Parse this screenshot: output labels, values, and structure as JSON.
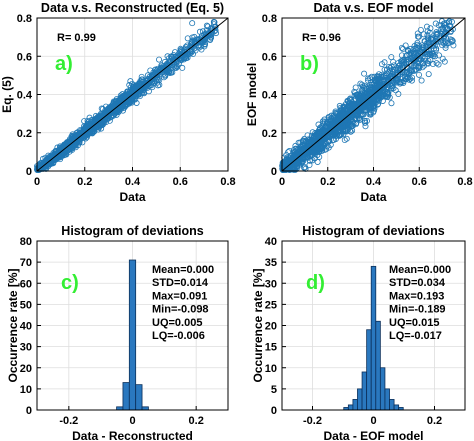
{
  "colors": {
    "marker": "#1f77b4",
    "bar_fill": "#2a78bf",
    "bar_edge": "#0b2f5a",
    "fit_line": "#000000",
    "panel_tag": "#33ee33"
  },
  "chart_data": [
    {
      "panel": "a)",
      "type": "scatter",
      "title": "Data v.s. Reconstructed (Eq. 5)",
      "xlabel": "Data",
      "ylabel": "Eq. (5)",
      "xlim": [
        0,
        0.8
      ],
      "ylim": [
        0,
        0.8
      ],
      "xticks": [
        "0",
        "0.2",
        "0.4",
        "0.6",
        "0.8"
      ],
      "yticks": [
        "0",
        "0.2",
        "0.4",
        "0.6",
        "0.8"
      ],
      "annotation": "R= 0.99",
      "marker": "open-circle",
      "grid": true,
      "fit_line": {
        "x": [
          0,
          0.8
        ],
        "y": [
          0,
          0.8
        ]
      },
      "points": {
        "n": 1500,
        "x_range": [
          0,
          0.75
        ],
        "concentrated_below": 0.4,
        "spread_std": 0.018,
        "seed": 11
      }
    },
    {
      "panel": "b)",
      "type": "scatter",
      "title": "Data v.s. EOF model",
      "xlabel": "Data",
      "ylabel": "EOF model",
      "xlim": [
        0,
        0.8
      ],
      "ylim": [
        0,
        0.8
      ],
      "xticks": [
        "0",
        "0.2",
        "0.4",
        "0.6",
        "0.8"
      ],
      "yticks": [
        "0",
        "0.2",
        "0.4",
        "0.6",
        "0.8"
      ],
      "annotation": "R= 0.96",
      "marker": "open-circle",
      "grid": true,
      "fit_line": {
        "x": [
          0,
          0.8
        ],
        "y": [
          0,
          0.8
        ]
      },
      "points": {
        "n": 1600,
        "x_range": [
          0,
          0.75
        ],
        "concentrated_below": 0.4,
        "spread_std": 0.04,
        "seed": 29
      }
    },
    {
      "panel": "c)",
      "type": "bar",
      "title": "Histogram of deviations",
      "xlabel": "Data - Reconstructed",
      "ylabel": "Occurrence rate [%]",
      "xlim": [
        -0.3,
        0.3
      ],
      "ylim": [
        0,
        80
      ],
      "xticks": [
        "-0.2",
        "0",
        "0.2"
      ],
      "yticks": [
        "0",
        "10",
        "20",
        "30",
        "40",
        "50",
        "60",
        "70",
        "80"
      ],
      "bin_width": 0.02,
      "bins": [
        {
          "x": -0.04,
          "value": 1.5
        },
        {
          "x": -0.02,
          "value": 13
        },
        {
          "x": 0.0,
          "value": 71
        },
        {
          "x": 0.02,
          "value": 12
        },
        {
          "x": 0.04,
          "value": 1.5
        }
      ],
      "stats": [
        "Mean=0.000",
        "STD=0.014",
        "Max=0.091",
        "Min=-0.098",
        "UQ=0.005",
        "LQ=-0.006"
      ]
    },
    {
      "panel": "d)",
      "type": "bar",
      "title": "Histogram of deviations",
      "xlabel": "Data - EOF model",
      "ylabel": "Occurrence rate [%]",
      "xlim": [
        -0.3,
        0.3
      ],
      "ylim": [
        0,
        40
      ],
      "xticks": [
        "-0.2",
        "0",
        "0.2"
      ],
      "yticks": [
        "0",
        "5",
        "10",
        "15",
        "20",
        "25",
        "30",
        "35",
        "40"
      ],
      "bin_width": 0.015,
      "bins": [
        {
          "x": -0.09,
          "value": 0.6
        },
        {
          "x": -0.075,
          "value": 1.2
        },
        {
          "x": -0.06,
          "value": 2.5
        },
        {
          "x": -0.045,
          "value": 5
        },
        {
          "x": -0.03,
          "value": 9
        },
        {
          "x": -0.015,
          "value": 19
        },
        {
          "x": 0.0,
          "value": 34
        },
        {
          "x": 0.015,
          "value": 21
        },
        {
          "x": 0.03,
          "value": 10
        },
        {
          "x": 0.045,
          "value": 5
        },
        {
          "x": 0.06,
          "value": 2.5
        },
        {
          "x": 0.075,
          "value": 1.2
        },
        {
          "x": 0.09,
          "value": 0.6
        }
      ],
      "stats": [
        "Mean=0.000",
        "STD=0.034",
        "Max=0.193",
        "Min=-0.189",
        "UQ=0.015",
        "LQ=-0.017"
      ]
    }
  ]
}
